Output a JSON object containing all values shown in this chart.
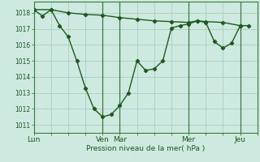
{
  "background_color": "#ceeae0",
  "grid_color": "#aacfbf",
  "line_color": "#1a5c1a",
  "marker_color": "#1a5c1a",
  "xlabel": "Pression niveau de la mer( hPa )",
  "ylim": [
    1010.5,
    1018.7
  ],
  "yticks": [
    1011,
    1012,
    1013,
    1014,
    1015,
    1016,
    1017,
    1018
  ],
  "day_labels": [
    "Lun",
    "Ven",
    "Mar",
    "Mer",
    "Jeu"
  ],
  "day_positions": [
    0,
    48,
    60,
    108,
    144
  ],
  "vline_positions": [
    48,
    60,
    108,
    144
  ],
  "series1_x": [
    0,
    12,
    24,
    36,
    48,
    60,
    72,
    84,
    96,
    108,
    114,
    120,
    132,
    144
  ],
  "series1_y": [
    1018.2,
    1018.2,
    1018.0,
    1017.9,
    1017.85,
    1017.7,
    1017.6,
    1017.5,
    1017.45,
    1017.4,
    1017.5,
    1017.45,
    1017.4,
    1017.2
  ],
  "series2_x": [
    0,
    6,
    12,
    18,
    24,
    30,
    36,
    42,
    48,
    54,
    60,
    66,
    72,
    78,
    84,
    90,
    96,
    102,
    108,
    114,
    120,
    126,
    132,
    138,
    144,
    150
  ],
  "series2_y": [
    1018.2,
    1017.8,
    1018.2,
    1017.2,
    1016.5,
    1015.0,
    1013.3,
    1012.0,
    1011.5,
    1011.65,
    1012.2,
    1013.0,
    1015.0,
    1014.4,
    1014.5,
    1015.0,
    1017.05,
    1017.2,
    1017.3,
    1017.5,
    1017.4,
    1016.2,
    1015.8,
    1016.1,
    1017.2,
    1017.2
  ],
  "xmax": 156,
  "xtick_minor_step": 12
}
